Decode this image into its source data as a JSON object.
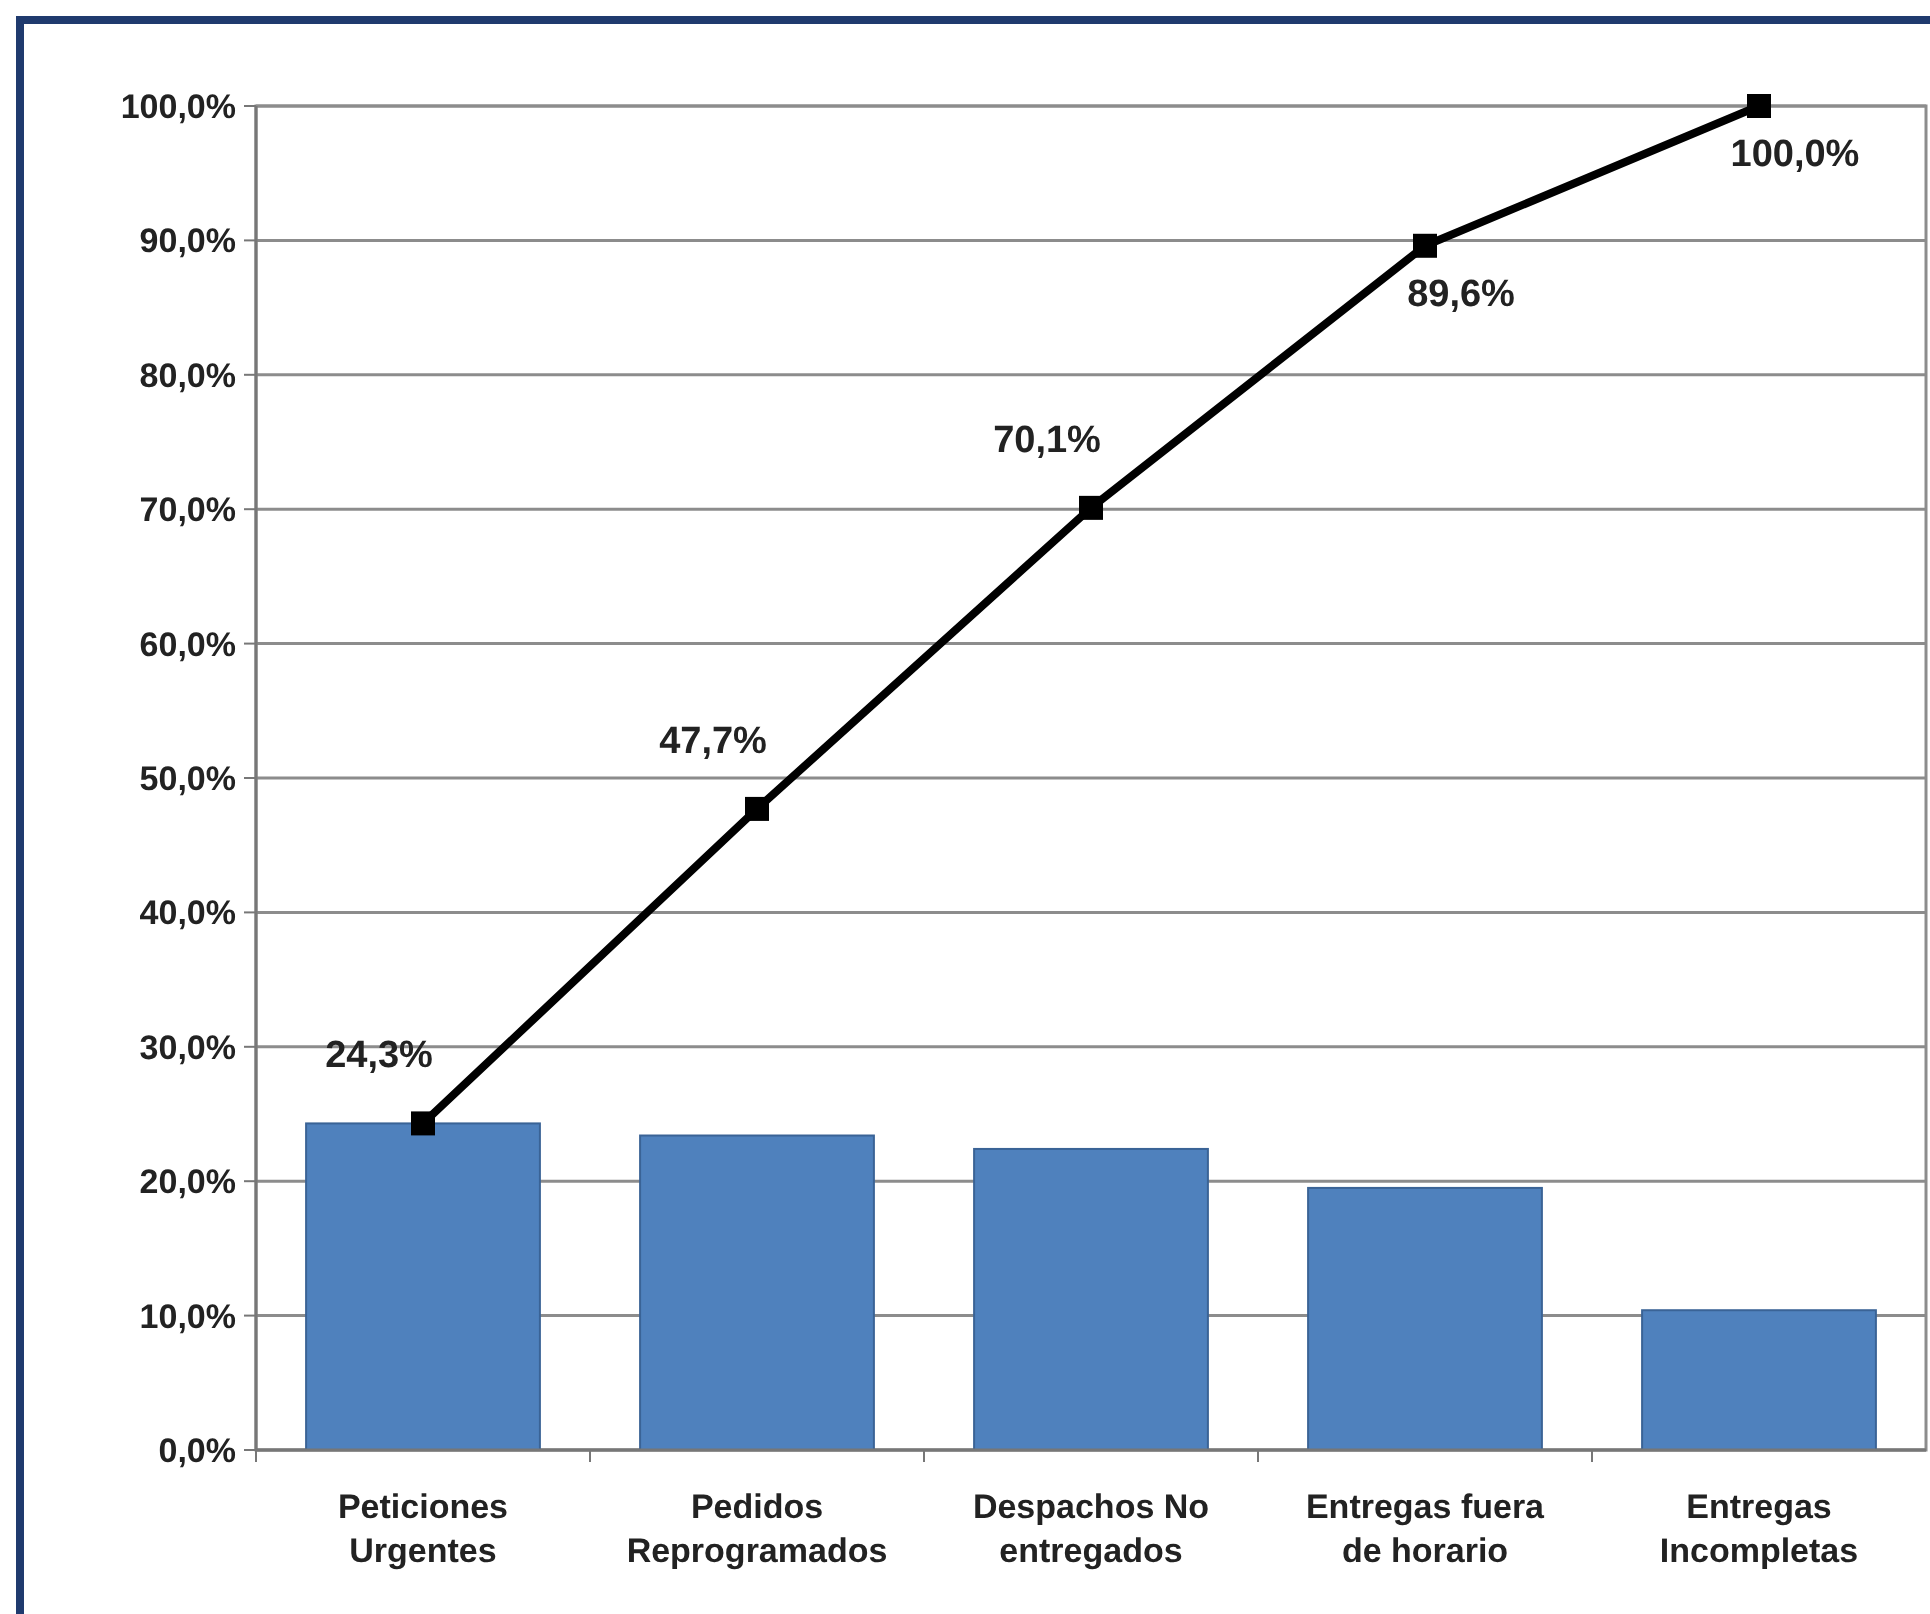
{
  "chart_data": {
    "type": "bar",
    "categories": [
      "Peticiones Urgentes",
      "Pedidos Reprogramados",
      "Despachos No entregados",
      "Entregas fuera de horario",
      "Entregas Incompletas"
    ],
    "series": [
      {
        "color": "#4f81bd",
        "values": [
          24.3,
          23.4,
          22.4,
          19.5,
          10.4
        ]
      },
      {
        "type": "line",
        "color": "#000000",
        "marker": "square",
        "values": [
          24.3,
          47.7,
          70.1,
          89.6,
          100.0
        ],
        "value_labels": [
          "24,3%",
          "47,7%",
          "70,1%",
          "89,6%",
          "100,0%"
        ]
      }
    ],
    "ylim": [
      0,
      100
    ],
    "yticks": [
      {
        "value": 0,
        "label": "0,0%"
      },
      {
        "value": 10,
        "label": "10,0%"
      },
      {
        "value": 20,
        "label": "20,0%"
      },
      {
        "value": 30,
        "label": "30,0%"
      },
      {
        "value": 40,
        "label": "40,0%"
      },
      {
        "value": 50,
        "label": "50,0%"
      },
      {
        "value": 60,
        "label": "60,0%"
      },
      {
        "value": 70,
        "label": "70,0%"
      },
      {
        "value": 80,
        "label": "80,0%"
      },
      {
        "value": 90,
        "label": "90,0%"
      },
      {
        "value": 100,
        "label": "100,0%"
      }
    ],
    "grid": "y"
  }
}
